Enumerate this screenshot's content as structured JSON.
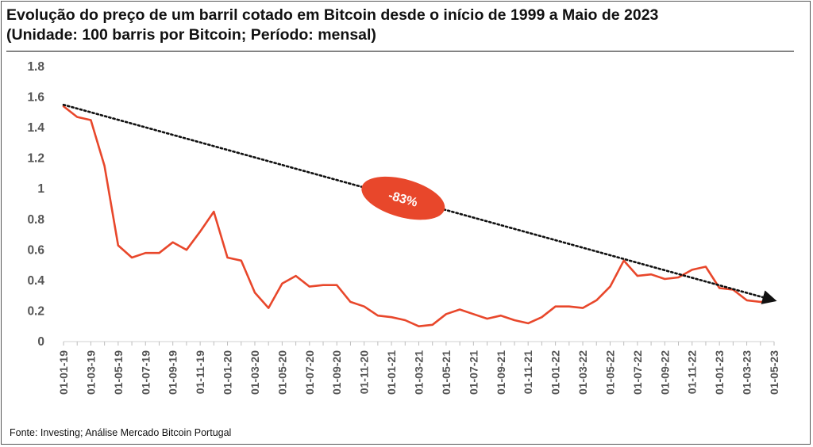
{
  "chart_data": {
    "type": "line",
    "title": "Evolução do preço de um barril cotado em Bitcoin desde o início de 1999 a Maio de 2023",
    "subtitle": "(Unidade: 100 barris por Bitcoin; Período: mensal)",
    "source": "Fonte: Investing; Análise Mercado Bitcoin Portugal",
    "ylim": [
      0,
      1.8
    ],
    "yticks": [
      "0",
      "0.2",
      "0.4",
      "0.6",
      "0.8",
      "1",
      "1.2",
      "1.4",
      "1.6",
      "1.8"
    ],
    "grid": false,
    "xtick_labels": [
      "01-01-19",
      "01-03-19",
      "01-05-19",
      "01-07-19",
      "01-09-19",
      "01-11-19",
      "01-01-20",
      "01-03-20",
      "01-05-20",
      "01-07-20",
      "01-09-20",
      "01-11-20",
      "01-01-21",
      "01-03-21",
      "01-05-21",
      "01-07-21",
      "01-09-21",
      "01-11-21",
      "01-01-22",
      "01-03-22",
      "01-05-22",
      "01-07-22",
      "01-09-22",
      "01-11-22",
      "01-01-23",
      "01-03-23",
      "01-05-23"
    ],
    "series": [
      {
        "color": "#e8472b",
        "x": [
          "2019-01",
          "2019-02",
          "2019-03",
          "2019-04",
          "2019-05",
          "2019-06",
          "2019-07",
          "2019-08",
          "2019-09",
          "2019-10",
          "2019-11",
          "2019-12",
          "2020-01",
          "2020-02",
          "2020-03",
          "2020-04",
          "2020-05",
          "2020-06",
          "2020-07",
          "2020-08",
          "2020-09",
          "2020-10",
          "2020-11",
          "2020-12",
          "2021-01",
          "2021-02",
          "2021-03",
          "2021-04",
          "2021-05",
          "2021-06",
          "2021-07",
          "2021-08",
          "2021-09",
          "2021-10",
          "2021-11",
          "2021-12",
          "2022-01",
          "2022-02",
          "2022-03",
          "2022-04",
          "2022-05",
          "2022-06",
          "2022-07",
          "2022-08",
          "2022-09",
          "2022-10",
          "2022-11",
          "2022-12",
          "2023-01",
          "2023-02",
          "2023-03",
          "2023-04",
          "2023-05"
        ],
        "values": [
          1.54,
          1.47,
          1.45,
          1.15,
          0.63,
          0.55,
          0.58,
          0.58,
          0.65,
          0.6,
          0.72,
          0.85,
          0.55,
          0.53,
          0.32,
          0.22,
          0.38,
          0.43,
          0.36,
          0.37,
          0.37,
          0.26,
          0.23,
          0.17,
          0.16,
          0.14,
          0.1,
          0.11,
          0.18,
          0.21,
          0.18,
          0.15,
          0.17,
          0.14,
          0.12,
          0.16,
          0.23,
          0.23,
          0.22,
          0.27,
          0.36,
          0.53,
          0.43,
          0.44,
          0.41,
          0.42,
          0.47,
          0.49,
          0.35,
          0.34,
          0.27,
          0.26,
          0.27
        ]
      }
    ],
    "trendline": {
      "style": "dotted",
      "color": "#111111",
      "from": {
        "x": "2019-01",
        "y": 1.55
      },
      "to": {
        "x": "2023-05",
        "y": 0.27
      }
    },
    "annotation": {
      "text": "-83%",
      "color": "#e8472b"
    }
  }
}
